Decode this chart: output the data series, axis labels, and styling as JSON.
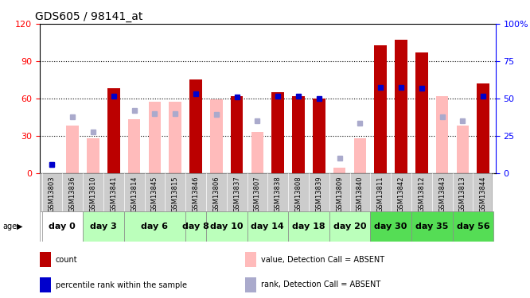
{
  "title": "GDS605 / 98141_at",
  "samples": [
    "GSM13803",
    "GSM13836",
    "GSM13810",
    "GSM13841",
    "GSM13814",
    "GSM13845",
    "GSM13815",
    "GSM13846",
    "GSM13806",
    "GSM13837",
    "GSM13807",
    "GSM13838",
    "GSM13808",
    "GSM13839",
    "GSM13809",
    "GSM13840",
    "GSM13811",
    "GSM13842",
    "GSM13812",
    "GSM13843",
    "GSM13813",
    "GSM13844"
  ],
  "day_groups": [
    {
      "label": "day 0",
      "indices": [
        0,
        1
      ],
      "color": "#ffffff"
    },
    {
      "label": "day 3",
      "indices": [
        2,
        3
      ],
      "color": "#bbffbb"
    },
    {
      "label": "day 6",
      "indices": [
        4,
        5,
        6
      ],
      "color": "#bbffbb"
    },
    {
      "label": "day 8",
      "indices": [
        7
      ],
      "color": "#bbffbb"
    },
    {
      "label": "day 10",
      "indices": [
        8,
        9
      ],
      "color": "#bbffbb"
    },
    {
      "label": "day 14",
      "indices": [
        10,
        11
      ],
      "color": "#bbffbb"
    },
    {
      "label": "day 18",
      "indices": [
        12,
        13
      ],
      "color": "#bbffbb"
    },
    {
      "label": "day 20",
      "indices": [
        14,
        15
      ],
      "color": "#bbffbb"
    },
    {
      "label": "day 30",
      "indices": [
        16,
        17
      ],
      "color": "#55dd55"
    },
    {
      "label": "day 35",
      "indices": [
        18,
        19
      ],
      "color": "#55dd55"
    },
    {
      "label": "day 56",
      "indices": [
        20,
        21
      ],
      "color": "#55dd55"
    }
  ],
  "count": [
    0,
    0,
    0,
    68,
    0,
    0,
    0,
    75,
    0,
    62,
    0,
    65,
    62,
    60,
    0,
    0,
    103,
    107,
    97,
    0,
    0,
    72
  ],
  "percentile": [
    7,
    0,
    0,
    62,
    0,
    0,
    0,
    64,
    0,
    61,
    0,
    62,
    62,
    60,
    0,
    0,
    69,
    69,
    68,
    0,
    0,
    62
  ],
  "value_absent": [
    0,
    38,
    28,
    0,
    43,
    57,
    57,
    0,
    59,
    0,
    33,
    0,
    0,
    0,
    4,
    28,
    0,
    0,
    0,
    62,
    38,
    0
  ],
  "rank_absent": [
    7,
    45,
    33,
    0,
    50,
    48,
    48,
    0,
    47,
    0,
    42,
    0,
    0,
    0,
    12,
    40,
    0,
    0,
    0,
    45,
    42,
    0
  ],
  "ylim_left": [
    0,
    120
  ],
  "ylim_right": [
    0,
    100
  ],
  "yticks_left": [
    0,
    30,
    60,
    90,
    120
  ],
  "yticks_right": [
    0,
    25,
    50,
    75,
    100
  ],
  "bar_color_count": "#bb0000",
  "bar_color_absent": "#ffbbbb",
  "dot_color_pct": "#0000cc",
  "dot_color_rank": "#aaaacc",
  "legend_items": [
    {
      "label": "count",
      "color": "#bb0000"
    },
    {
      "label": "percentile rank within the sample",
      "color": "#0000cc"
    },
    {
      "label": "value, Detection Call = ABSENT",
      "color": "#ffbbbb"
    },
    {
      "label": "rank, Detection Call = ABSENT",
      "color": "#aaaacc"
    }
  ]
}
